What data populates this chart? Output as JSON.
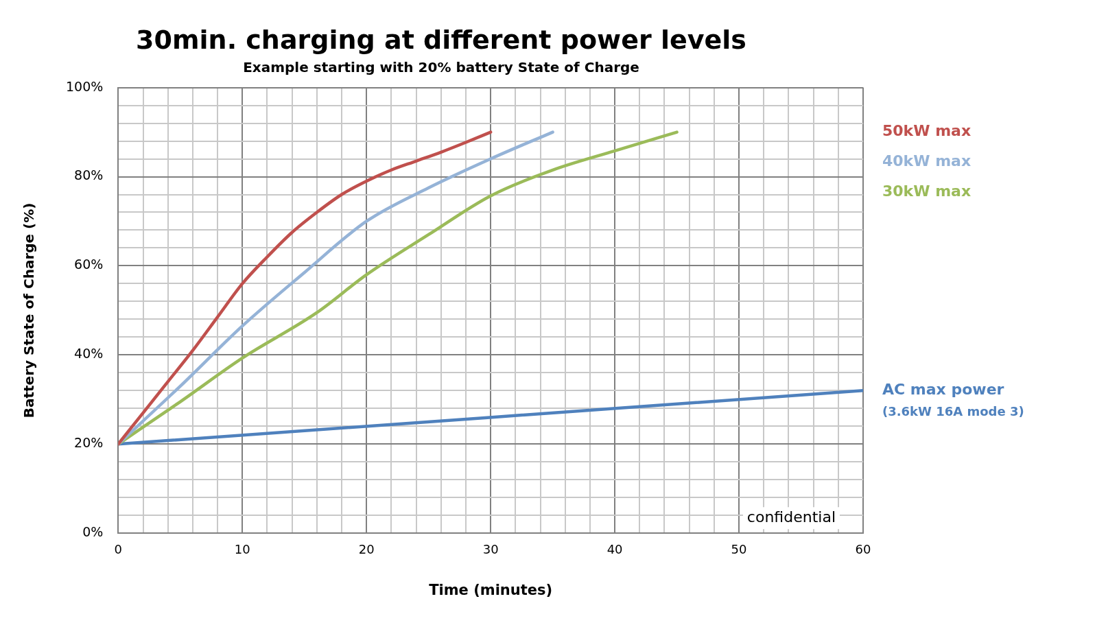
{
  "chart_data": {
    "type": "line",
    "title": "30min. charging at different power levels",
    "subtitle": "Example starting with 20% battery State of Charge",
    "xlabel": "Time (minutes)",
    "ylabel": "Battery State of Charge (%)",
    "xlim": [
      0,
      60
    ],
    "ylim": [
      0,
      100
    ],
    "xticks": [
      0,
      {
        "value": 2,
        "label": null
      },
      {
        "value": 4,
        "label": null
      },
      {
        "value": 6,
        "label": null
      },
      {
        "value": 8,
        "label": null
      },
      10,
      {
        "value": 12,
        "label": null
      },
      {
        "value": 14,
        "label": null
      },
      {
        "value": 16,
        "label": null
      },
      {
        "value": 18,
        "label": null
      },
      20,
      {
        "value": 22,
        "label": null
      },
      {
        "value": 24,
        "label": null
      },
      {
        "value": 26,
        "label": null
      },
      {
        "value": 28,
        "label": null
      },
      30,
      {
        "value": 32,
        "label": null
      },
      {
        "value": 34,
        "label": null
      },
      {
        "value": 36,
        "label": null
      },
      {
        "value": 38,
        "label": null
      },
      40,
      {
        "value": 42,
        "label": null
      },
      {
        "value": 44,
        "label": null
      },
      {
        "value": 46,
        "label": null
      },
      {
        "value": 48,
        "label": null
      },
      50,
      {
        "value": 52,
        "label": null
      },
      {
        "value": 54,
        "label": null
      },
      {
        "value": 56,
        "label": null
      },
      {
        "value": 58,
        "label": null
      },
      60
    ],
    "yticks": [
      {
        "value": 0,
        "label": "0%"
      },
      {
        "value": 4,
        "label": null
      },
      {
        "value": 8,
        "label": null
      },
      {
        "value": 12,
        "label": null
      },
      {
        "value": 16,
        "label": null
      },
      {
        "value": 20,
        "label": "20%"
      },
      {
        "value": 24,
        "label": null
      },
      {
        "value": 28,
        "label": null
      },
      {
        "value": 32,
        "label": null
      },
      {
        "value": 36,
        "label": null
      },
      {
        "value": 40,
        "label": "40%"
      },
      {
        "value": 44,
        "label": null
      },
      {
        "value": 48,
        "label": null
      },
      {
        "value": 52,
        "label": null
      },
      {
        "value": 56,
        "label": null
      },
      {
        "value": 60,
        "label": "60%"
      },
      {
        "value": 64,
        "label": null
      },
      {
        "value": 68,
        "label": null
      },
      {
        "value": 72,
        "label": null
      },
      {
        "value": 76,
        "label": null
      },
      {
        "value": 80,
        "label": "80%"
      },
      {
        "value": 84,
        "label": null
      },
      {
        "value": 88,
        "label": null
      },
      {
        "value": 92,
        "label": null
      },
      {
        "value": 96,
        "label": null
      },
      {
        "value": 100,
        "label": "100%"
      }
    ],
    "grid": true,
    "marker": "none",
    "line_style": "solid",
    "series": [
      {
        "name": "50kW max",
        "color": "#c0504d",
        "x": [
          0,
          2,
          4,
          6,
          8,
          10,
          12,
          14,
          16,
          18,
          20,
          22,
          24,
          26,
          28,
          30
        ],
        "values": [
          20,
          27,
          34,
          41,
          48.5,
          56,
          62,
          67.5,
          72,
          76,
          79,
          81.5,
          83.5,
          85.5,
          87.7,
          90
        ]
      },
      {
        "name": "40kW max",
        "color": "#95b3d7",
        "x": [
          0,
          5,
          10,
          15,
          20,
          25,
          30,
          35
        ],
        "values": [
          20,
          33,
          46.5,
          58.5,
          70,
          77.5,
          84,
          90
        ]
      },
      {
        "name": "30kW max",
        "color": "#9bbb59",
        "x": [
          0,
          5,
          10,
          16,
          20,
          25,
          30,
          35,
          40,
          45
        ],
        "values": [
          20,
          29.5,
          39.3,
          49.5,
          58,
          67,
          75.7,
          81.5,
          85.8,
          90
        ]
      },
      {
        "name": "AC max power",
        "color": "#4f81bd",
        "x": [
          0,
          60
        ],
        "values": [
          20,
          32
        ]
      }
    ],
    "annotations": [
      {
        "text": "(3.6kW 16A mode 3)",
        "x": 60,
        "y": 32
      },
      "confidential"
    ]
  }
}
